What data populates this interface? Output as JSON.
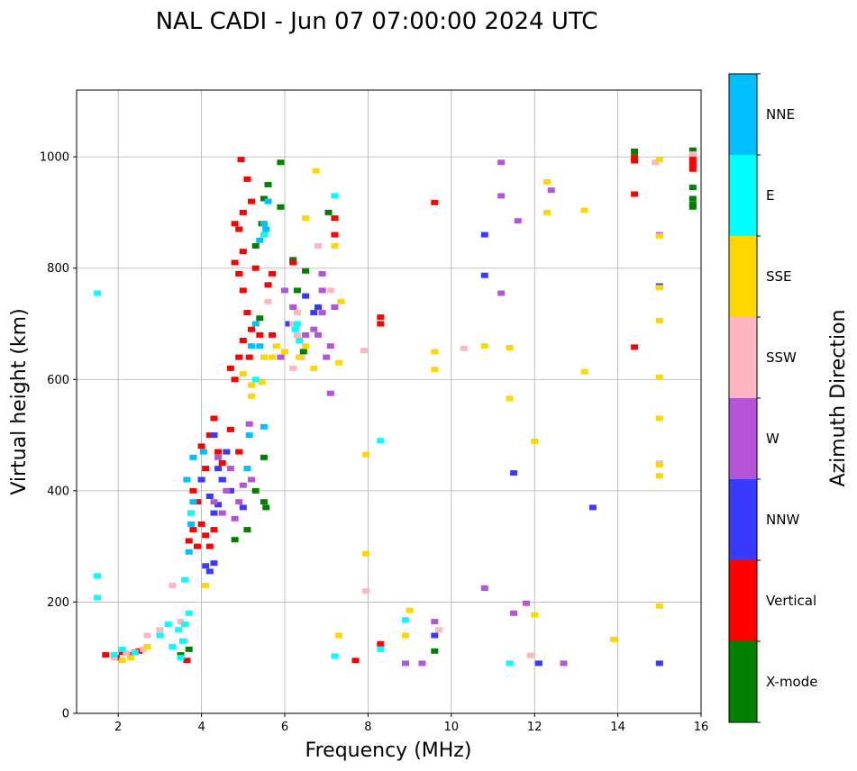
{
  "chart_data": {
    "type": "scatter",
    "title": "NAL CADI - Jun 07 07:00:00 2024 UTC",
    "xlabel": "Frequency (MHz)",
    "ylabel": "Virtual height (km)",
    "xlim": [
      1,
      16
    ],
    "ylim": [
      0,
      1120
    ],
    "xticks": [
      2,
      4,
      6,
      8,
      10,
      12,
      14,
      16
    ],
    "yticks": [
      0,
      200,
      400,
      600,
      800,
      1000
    ],
    "grid": true,
    "colorbar": {
      "label": "Azimuth Direction",
      "categories": [
        "X-mode",
        "Vertical",
        "NNW",
        "W",
        "SSW",
        "SSE",
        "E",
        "NNE"
      ],
      "colors": [
        "#008000",
        "#ff0000",
        "#3a3aff",
        "#b455d8",
        "#ffb6c1",
        "#ffd700",
        "#00ffff",
        "#00bfff"
      ]
    },
    "series": [
      {
        "name": "X-mode",
        "points": [
          [
            5.9,
            990
          ],
          [
            5.6,
            950
          ],
          [
            5.5,
            925
          ],
          [
            5.9,
            910
          ],
          [
            5.45,
            880
          ],
          [
            6.2,
            815
          ],
          [
            5.3,
            840
          ],
          [
            5.4,
            710
          ],
          [
            6.45,
            650
          ],
          [
            5.5,
            460
          ],
          [
            5.3,
            400
          ],
          [
            5.1,
            330
          ],
          [
            4.8,
            312
          ],
          [
            3.7,
            115
          ],
          [
            3.5,
            105
          ],
          [
            9.6,
            112
          ],
          [
            14.4,
            1010
          ],
          [
            15.8,
            1012
          ],
          [
            15.8,
            945
          ],
          [
            15.8,
            925
          ],
          [
            15.8,
            915
          ],
          [
            15.8,
            910
          ],
          [
            7.05,
            900
          ],
          [
            6.5,
            795
          ],
          [
            6.3,
            760
          ],
          [
            5.5,
            380
          ],
          [
            5.55,
            370
          ]
        ]
      },
      {
        "name": "Vertical",
        "points": [
          [
            1.7,
            105
          ],
          [
            1.95,
            100
          ],
          [
            2.1,
            110
          ],
          [
            2.3,
            105
          ],
          [
            2.5,
            112
          ],
          [
            3.65,
            95
          ],
          [
            3.7,
            310
          ],
          [
            3.8,
            330
          ],
          [
            3.9,
            300
          ],
          [
            4.0,
            340
          ],
          [
            4.1,
            320
          ],
          [
            4.2,
            300
          ],
          [
            4.3,
            330
          ],
          [
            3.75,
            360
          ],
          [
            3.9,
            380
          ],
          [
            3.8,
            400
          ],
          [
            4.0,
            420
          ],
          [
            4.1,
            440
          ],
          [
            4.0,
            480
          ],
          [
            4.2,
            500
          ],
          [
            4.4,
            470
          ],
          [
            4.5,
            450
          ],
          [
            4.7,
            510
          ],
          [
            4.9,
            470
          ],
          [
            4.3,
            530
          ],
          [
            4.8,
            600
          ],
          [
            4.7,
            620
          ],
          [
            4.9,
            640
          ],
          [
            5.0,
            670
          ],
          [
            5.2,
            690
          ],
          [
            5.4,
            680
          ],
          [
            5.1,
            720
          ],
          [
            5.0,
            760
          ],
          [
            4.9,
            790
          ],
          [
            4.8,
            810
          ],
          [
            5.0,
            830
          ],
          [
            5.3,
            800
          ],
          [
            4.9,
            870
          ],
          [
            4.8,
            880
          ],
          [
            5.0,
            900
          ],
          [
            5.2,
            920
          ],
          [
            5.1,
            960
          ],
          [
            4.95,
            995
          ],
          [
            5.6,
            770
          ],
          [
            5.7,
            790
          ],
          [
            6.2,
            810
          ],
          [
            7.2,
            890
          ],
          [
            7.2,
            860
          ],
          [
            8.3,
            712
          ],
          [
            8.3,
            700
          ],
          [
            9.6,
            918
          ],
          [
            14.4,
            1000
          ],
          [
            14.4,
            993
          ],
          [
            14.4,
            933
          ],
          [
            14.4,
            658
          ],
          [
            15.8,
            1000
          ],
          [
            15.8,
            993
          ],
          [
            15.8,
            985
          ],
          [
            15.8,
            978
          ],
          [
            7.7,
            95
          ],
          [
            8.3,
            125
          ],
          [
            5.7,
            680
          ],
          [
            5.15,
            640
          ]
        ]
      },
      {
        "name": "NNW",
        "points": [
          [
            4.2,
            255
          ],
          [
            4.1,
            265
          ],
          [
            4.3,
            270
          ],
          [
            4.3,
            360
          ],
          [
            4.4,
            375
          ],
          [
            4.2,
            390
          ],
          [
            4.7,
            400
          ],
          [
            4.5,
            420
          ],
          [
            4.4,
            440
          ],
          [
            4.6,
            470
          ],
          [
            4.0,
            420
          ],
          [
            4.3,
            500
          ],
          [
            6.7,
            720
          ],
          [
            6.8,
            730
          ],
          [
            6.5,
            750
          ],
          [
            6.1,
            700
          ],
          [
            10.8,
            787
          ],
          [
            10.8,
            860
          ],
          [
            11.5,
            432
          ],
          [
            13.4,
            370
          ],
          [
            15.0,
            768
          ],
          [
            15.0,
            90
          ],
          [
            12.1,
            90
          ],
          [
            9.6,
            140
          ],
          [
            5.0,
            370
          ],
          [
            4.5,
            420
          ]
        ]
      },
      {
        "name": "W",
        "points": [
          [
            4.3,
            380
          ],
          [
            4.5,
            360
          ],
          [
            4.6,
            400
          ],
          [
            4.8,
            350
          ],
          [
            4.9,
            380
          ],
          [
            5.0,
            410
          ],
          [
            5.2,
            420
          ],
          [
            4.7,
            440
          ],
          [
            4.4,
            460
          ],
          [
            5.15,
            520
          ],
          [
            6.0,
            760
          ],
          [
            6.2,
            730
          ],
          [
            6.5,
            680
          ],
          [
            6.7,
            690
          ],
          [
            6.9,
            720
          ],
          [
            7.0,
            640
          ],
          [
            7.1,
            660
          ],
          [
            6.9,
            760
          ],
          [
            6.9,
            790
          ],
          [
            7.2,
            730
          ],
          [
            6.8,
            680
          ],
          [
            11.2,
            990
          ],
          [
            11.2,
            930
          ],
          [
            11.2,
            755
          ],
          [
            11.6,
            885
          ],
          [
            12.4,
            940
          ],
          [
            15.0,
            860
          ],
          [
            11.5,
            180
          ],
          [
            11.8,
            198
          ],
          [
            12.7,
            90
          ],
          [
            8.9,
            90
          ],
          [
            9.3,
            90
          ],
          [
            9.6,
            165
          ],
          [
            10.8,
            225
          ],
          [
            7.1,
            575
          ],
          [
            5.9,
            640
          ]
        ]
      },
      {
        "name": "SSW",
        "points": [
          [
            1.9,
            100
          ],
          [
            2.2,
            108
          ],
          [
            2.6,
            115
          ],
          [
            3.0,
            150
          ],
          [
            3.5,
            165
          ],
          [
            3.6,
            130
          ],
          [
            5.6,
            740
          ],
          [
            6.3,
            720
          ],
          [
            6.2,
            700
          ],
          [
            6.4,
            640
          ],
          [
            6.2,
            620
          ],
          [
            6.3,
            680
          ],
          [
            7.1,
            760
          ],
          [
            6.8,
            840
          ],
          [
            9.7,
            150
          ],
          [
            7.95,
            220
          ],
          [
            3.3,
            230
          ],
          [
            2.7,
            140
          ],
          [
            11.9,
            104
          ],
          [
            15.0,
            450
          ],
          [
            14.9,
            990
          ],
          [
            15.8,
            1005
          ],
          [
            7.9,
            652
          ],
          [
            10.3,
            656
          ]
        ]
      },
      {
        "name": "SSE",
        "points": [
          [
            2.1,
            95
          ],
          [
            2.3,
            100
          ],
          [
            2.7,
            120
          ],
          [
            4.1,
            230
          ],
          [
            5.0,
            610
          ],
          [
            5.2,
            590
          ],
          [
            5.45,
            595
          ],
          [
            5.2,
            570
          ],
          [
            5.5,
            640
          ],
          [
            5.8,
            660
          ],
          [
            6.0,
            650
          ],
          [
            6.35,
            640
          ],
          [
            6.5,
            660
          ],
          [
            6.7,
            620
          ],
          [
            6.75,
            975
          ],
          [
            7.2,
            840
          ],
          [
            7.3,
            630
          ],
          [
            7.35,
            740
          ],
          [
            7.95,
            465
          ],
          [
            7.95,
            287
          ],
          [
            9.6,
            650
          ],
          [
            9.6,
            618
          ],
          [
            10.8,
            660
          ],
          [
            11.4,
            657
          ],
          [
            11.4,
            566
          ],
          [
            12.0,
            489
          ],
          [
            12.3,
            955
          ],
          [
            12.3,
            900
          ],
          [
            13.2,
            904
          ],
          [
            13.2,
            614
          ],
          [
            13.9,
            133
          ],
          [
            12.0,
            177
          ],
          [
            9.0,
            185
          ],
          [
            8.9,
            140
          ],
          [
            7.3,
            140
          ],
          [
            15.0,
            995
          ],
          [
            15.0,
            858
          ],
          [
            15.0,
            765
          ],
          [
            15.0,
            706
          ],
          [
            15.0,
            604
          ],
          [
            15.0,
            530
          ],
          [
            15.0,
            447
          ],
          [
            15.0,
            427
          ],
          [
            15.0,
            193
          ],
          [
            6.5,
            890
          ],
          [
            5.7,
            640
          ]
        ]
      },
      {
        "name": "E",
        "points": [
          [
            1.9,
            105
          ],
          [
            2.1,
            115
          ],
          [
            2.4,
            110
          ],
          [
            3.0,
            140
          ],
          [
            3.2,
            160
          ],
          [
            3.3,
            120
          ],
          [
            3.45,
            150
          ],
          [
            3.5,
            100
          ],
          [
            3.55,
            130
          ],
          [
            3.6,
            160
          ],
          [
            3.6,
            240
          ],
          [
            3.7,
            180
          ],
          [
            3.75,
            360
          ],
          [
            5.3,
            600
          ],
          [
            6.3,
            700
          ],
          [
            6.35,
            670
          ],
          [
            6.25,
            690
          ],
          [
            7.2,
            930
          ],
          [
            7.2,
            103
          ],
          [
            8.3,
            490
          ],
          [
            8.3,
            115
          ],
          [
            8.9,
            168
          ],
          [
            11.4,
            90
          ],
          [
            5.5,
            860
          ],
          [
            1.5,
            755
          ],
          [
            1.5,
            247
          ],
          [
            1.5,
            208
          ]
        ]
      },
      {
        "name": "NNE",
        "points": [
          [
            5.5,
            880
          ],
          [
            5.6,
            920
          ],
          [
            5.4,
            850
          ],
          [
            5.55,
            870
          ],
          [
            5.3,
            700
          ],
          [
            5.2,
            660
          ],
          [
            5.4,
            660
          ],
          [
            5.5,
            515
          ],
          [
            5.15,
            500
          ],
          [
            5.1,
            440
          ],
          [
            3.7,
            290
          ],
          [
            3.75,
            340
          ],
          [
            3.8,
            380
          ],
          [
            3.65,
            420
          ],
          [
            3.8,
            460
          ],
          [
            4.05,
            470
          ]
        ]
      }
    ]
  }
}
